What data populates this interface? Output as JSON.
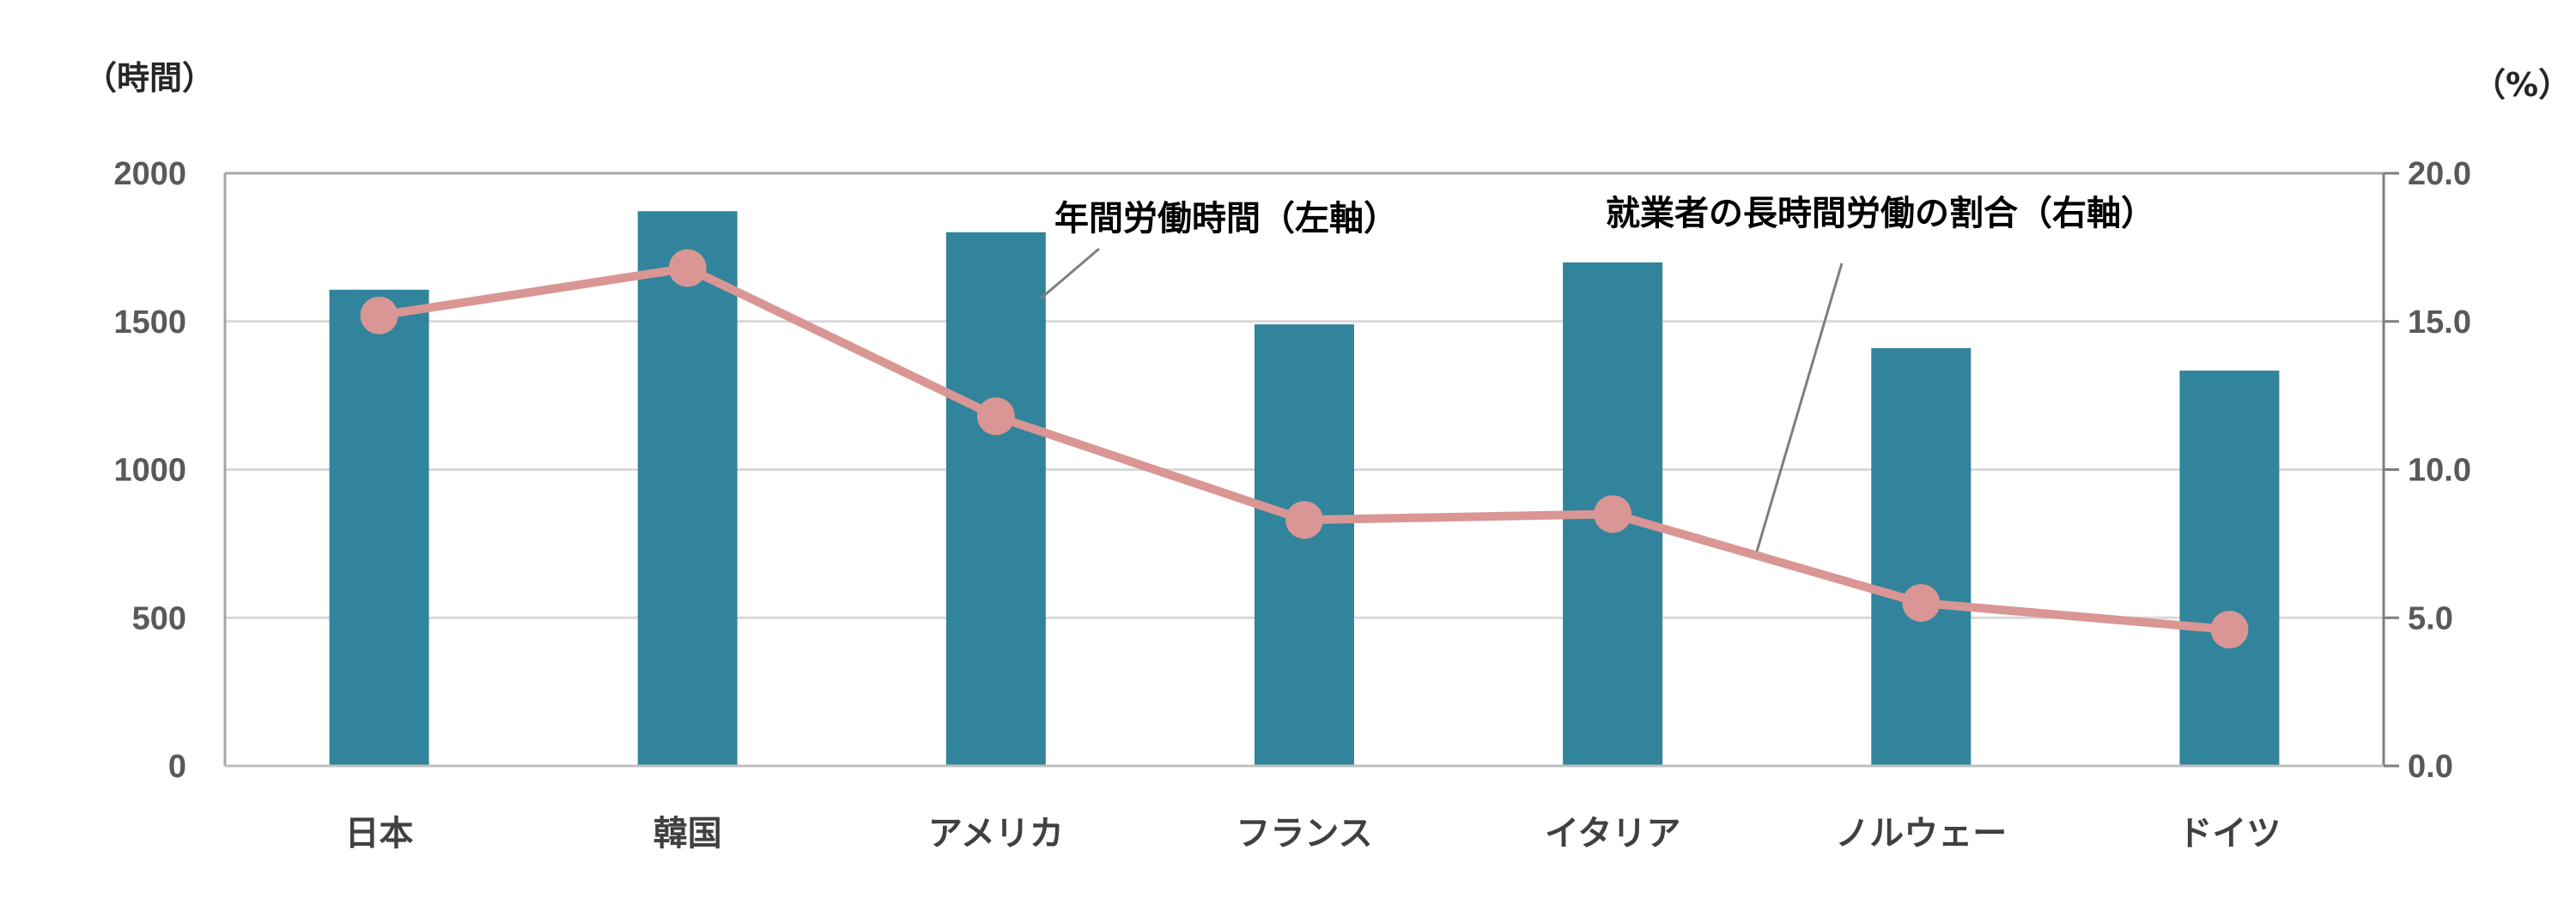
{
  "chart_data": {
    "type": "bar+line",
    "categories": [
      "日本",
      "韓国",
      "アメリカ",
      "フランス",
      "イタリア",
      "ノルウェー",
      "ドイツ"
    ],
    "series": [
      {
        "name": "年間労働時間（左軸）",
        "type": "bar",
        "axis": "left",
        "values": [
          1607,
          1872,
          1801,
          1490,
          1699,
          1410,
          1334
        ],
        "color": "#31849b"
      },
      {
        "name": "就業者の長時間労働の割合（右軸）",
        "type": "line",
        "axis": "right",
        "values": [
          15.2,
          16.8,
          11.8,
          8.3,
          8.5,
          5.5,
          4.6
        ],
        "color": "#d99694"
      }
    ],
    "y_left": {
      "unit": "（時間）",
      "range": [
        0,
        2000
      ],
      "ticks": [
        "0",
        "500",
        "1000",
        "1500",
        "2000"
      ]
    },
    "y_right": {
      "unit": "（%）",
      "range": [
        0,
        20
      ],
      "ticks": [
        "0.0",
        "5.0",
        "10.0",
        "15.0",
        "20.0"
      ]
    },
    "grid": true,
    "legend": "callout-labels"
  }
}
